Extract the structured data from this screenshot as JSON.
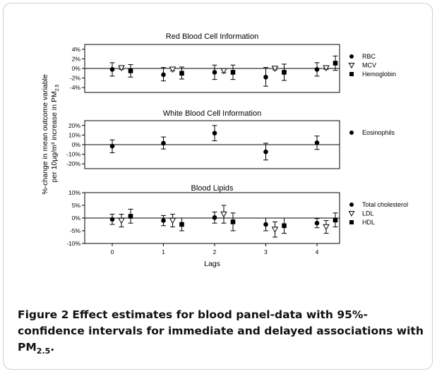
{
  "y_axis_label_line1": "%-change in mean outcome variable",
  "y_axis_label_line2_prefix": "per 10µg/m³ increase in PM",
  "y_axis_label_line2_sub": "2.5",
  "caption": {
    "label": "Figure 2",
    "text": "Effect estimates for blood panel-data with 95%-confidence intervals for immediate and delayed associations with PM",
    "sub": "2.5",
    "end": "."
  },
  "chart_data": [
    {
      "type": "scatter",
      "title": "Red Blood Cell Information",
      "xlabel": "",
      "lags": [
        0,
        1,
        2,
        3,
        4
      ],
      "ylim": [
        -5,
        5
      ],
      "yticks": [
        -4,
        -2,
        0,
        2,
        4
      ],
      "ytick_labels": [
        "-4%",
        "-2%",
        "0%",
        "2%",
        "4%"
      ],
      "grid": false,
      "legend_position": "right",
      "series": [
        {
          "name": "RBC",
          "marker": "circle",
          "y": [
            -0.2,
            -1.3,
            -0.8,
            -1.8,
            -0.2
          ],
          "lo": [
            -1.6,
            -2.6,
            -2.3,
            -3.7,
            -1.6
          ],
          "hi": [
            1.2,
            0.2,
            0.7,
            0.2,
            1.2
          ]
        },
        {
          "name": "MCV",
          "marker": "triangle",
          "y": [
            0.1,
            -0.2,
            -0.5,
            0.0,
            0.1
          ],
          "lo": [
            -0.2,
            -0.5,
            -0.9,
            -0.3,
            -0.2
          ],
          "hi": [
            0.4,
            0.1,
            -0.1,
            0.3,
            0.4
          ]
        },
        {
          "name": "Hemoglobin",
          "marker": "square",
          "y": [
            -0.5,
            -1.0,
            -0.8,
            -0.8,
            1.1
          ],
          "lo": [
            -1.8,
            -2.2,
            -2.3,
            -2.5,
            -0.4
          ],
          "hi": [
            0.8,
            0.3,
            0.7,
            0.9,
            2.6
          ]
        }
      ]
    },
    {
      "type": "scatter",
      "title": "White Blood Cell Information",
      "xlabel": "",
      "lags": [
        0,
        1,
        2,
        3,
        4
      ],
      "ylim": [
        -25,
        25
      ],
      "yticks": [
        -20,
        -10,
        0,
        10,
        20
      ],
      "ytick_labels": [
        "-20%",
        "-10%",
        "0%",
        "10%",
        "20%"
      ],
      "grid": false,
      "legend_position": "right",
      "series": [
        {
          "name": "Eosinophils",
          "marker": "circle",
          "y": [
            -1.5,
            1.5,
            12.0,
            -7.5,
            2.0
          ],
          "lo": [
            -8.5,
            -4.5,
            4.0,
            -16.0,
            -5.0
          ],
          "hi": [
            5.0,
            8.0,
            20.0,
            1.5,
            9.0
          ]
        }
      ]
    },
    {
      "type": "scatter",
      "title": "Blood Lipids",
      "xlabel": "Lags",
      "lags": [
        0,
        1,
        2,
        3,
        4
      ],
      "ylim": [
        -10,
        10
      ],
      "yticks": [
        -10,
        -5,
        0,
        5,
        10
      ],
      "ytick_labels": [
        "-10%",
        "-5%",
        "0%",
        "5%",
        "10%"
      ],
      "xticks": [
        0,
        1,
        2,
        3,
        4
      ],
      "xtick_labels": [
        "0",
        "1",
        "2",
        "3",
        "4"
      ],
      "grid": false,
      "legend_position": "right",
      "series": [
        {
          "name": "Total cholesterol",
          "marker": "circle",
          "y": [
            -0.5,
            -1.0,
            0.2,
            -2.5,
            -2.0
          ],
          "lo": [
            -2.5,
            -3.0,
            -2.0,
            -5.0,
            -3.8
          ],
          "hi": [
            1.5,
            1.0,
            2.4,
            0.0,
            -0.2
          ]
        },
        {
          "name": "LDL",
          "marker": "triangle",
          "y": [
            -1.0,
            -1.0,
            1.5,
            -4.5,
            -3.5
          ],
          "lo": [
            -3.5,
            -3.5,
            -2.0,
            -7.5,
            -6.0
          ],
          "hi": [
            1.5,
            1.5,
            5.0,
            -1.5,
            -1.0
          ]
        },
        {
          "name": "HDL",
          "marker": "square",
          "y": [
            0.7,
            -2.5,
            -1.5,
            -3.0,
            -0.8
          ],
          "lo": [
            -2.0,
            -5.0,
            -5.0,
            -6.0,
            -3.5
          ],
          "hi": [
            3.5,
            0.0,
            2.0,
            0.0,
            2.0
          ]
        }
      ]
    }
  ]
}
